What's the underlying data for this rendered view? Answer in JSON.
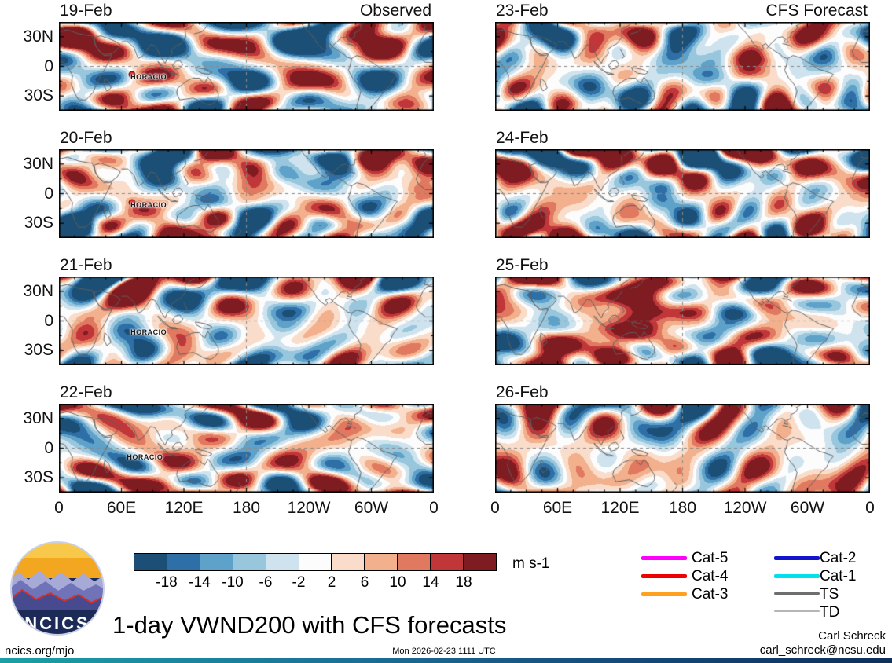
{
  "title": "1-day VWND200 with CFS forecasts",
  "column_headers": {
    "left": "Observed",
    "right": "CFS Forecast"
  },
  "axes": {
    "y_ticks": [
      "30N",
      "0",
      "30S"
    ],
    "x_ticks": [
      "0",
      "60E",
      "120E",
      "180",
      "120W",
      "60W",
      "0"
    ]
  },
  "colorbar": {
    "tick_labels": [
      "-18",
      "-14",
      "-10",
      "-6",
      "-2",
      "2",
      "6",
      "10",
      "14",
      "18"
    ],
    "units": "m s-1",
    "colors": [
      "#1c4f75",
      "#2f6fa7",
      "#5ea1c9",
      "#97c6dd",
      "#cfe3ef",
      "#fcfcfc",
      "#f9dcc9",
      "#f2b08c",
      "#e17860",
      "#c13639",
      "#7f1c22"
    ]
  },
  "legend": {
    "items": [
      {
        "label": "Cat-5",
        "color": "#ff00ff",
        "lw": 5
      },
      {
        "label": "Cat-4",
        "color": "#ee0000",
        "lw": 5
      },
      {
        "label": "Cat-3",
        "color": "#ffa11e",
        "lw": 5
      },
      {
        "label": "Cat-2",
        "color": "#1414cc",
        "lw": 5
      },
      {
        "label": "Cat-1",
        "color": "#00e0ee",
        "lw": 5
      },
      {
        "label": "TS",
        "color": "#6e6e6e",
        "lw": 3
      },
      {
        "label": "TD",
        "color": "#b5b5b5",
        "lw": 1.5
      }
    ]
  },
  "logo": {
    "text": "NCICS"
  },
  "footer": {
    "left": "ncics.org/mjo",
    "center": "Mon 2026-02-23 1111 UTC",
    "right_name": "Carl Schreck",
    "right_email": "carl_schreck@ncsu.edu"
  },
  "chart_data": {
    "type": "heatmap",
    "title": "1-day VWND200 with CFS forecasts",
    "variable": "200-hPa meridional wind (VWND200) anomaly, filled contours",
    "units": "m s-1",
    "contour_levels": [
      -18,
      -14,
      -10,
      -6,
      -2,
      2,
      6,
      10,
      14,
      18
    ],
    "palette": [
      "#1c4f75",
      "#2f6fa7",
      "#5ea1c9",
      "#97c6dd",
      "#cfe3ef",
      "#fcfcfc",
      "#f9dcc9",
      "#f2b08c",
      "#e17860",
      "#c13639",
      "#7f1c22"
    ],
    "lon_range_deg_east": [
      0,
      360
    ],
    "lat_range_deg": [
      -45,
      45
    ],
    "x_tick_labels": [
      "0",
      "60E",
      "120E",
      "180",
      "120W",
      "60W",
      "0"
    ],
    "y_tick_labels": [
      "30N",
      "0",
      "30S"
    ],
    "gridlines": {
      "equator_dashed": true,
      "dateline_dashed": true
    },
    "panel_grid": {
      "rows": 4,
      "cols": 2,
      "left_column": "Observed",
      "right_column": "CFS Forecast"
    },
    "panels": [
      {
        "date": "19-Feb",
        "source": "Observed",
        "storm": {
          "name": "HORACIO",
          "fx": 0.21,
          "fy": 0.62,
          "marker": true
        }
      },
      {
        "date": "20-Feb",
        "source": "Observed",
        "storm": {
          "name": "HORACIO",
          "fx": 0.21,
          "fy": 0.63,
          "marker": true
        }
      },
      {
        "date": "21-Feb",
        "source": "Observed",
        "storm": {
          "name": "HORACIO",
          "fx": 0.21,
          "fy": 0.63,
          "marker": false
        }
      },
      {
        "date": "22-Feb",
        "source": "Observed",
        "storm": {
          "name": "HORACIO",
          "fx": 0.2,
          "fy": 0.6,
          "marker": false
        }
      },
      {
        "date": "23-Feb",
        "source": "CFS Forecast"
      },
      {
        "date": "24-Feb",
        "source": "CFS Forecast"
      },
      {
        "date": "25-Feb",
        "source": "CFS Forecast"
      },
      {
        "date": "26-Feb",
        "source": "CFS Forecast"
      }
    ],
    "annotations": [
      {
        "type": "tropical-cyclone",
        "name": "HORACIO",
        "appears_on": [
          "19-Feb",
          "20-Feb",
          "21-Feb",
          "22-Feb"
        ],
        "approx_location": "south Indian Ocean near 70E, 10S"
      }
    ]
  }
}
